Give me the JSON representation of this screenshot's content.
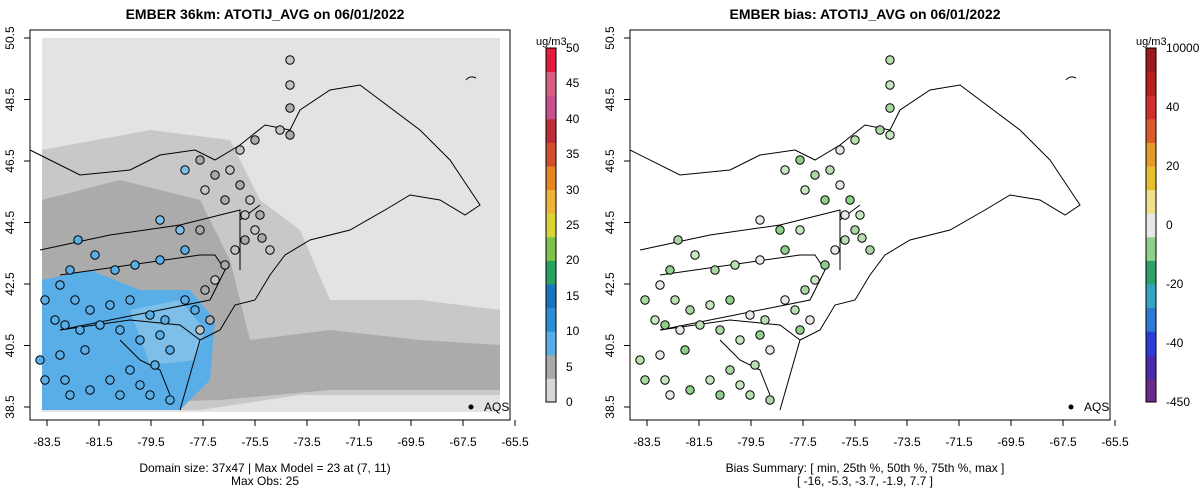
{
  "left_panel": {
    "title": "EMBER 36km: ATOTIJ_AVG on 06/01/2022",
    "footer_line1": "Domain size: 37x47 | Max Model = 23 at (7, 11)",
    "footer_line2": "Max Obs: 25",
    "legend_label": "AQS",
    "colorbar": {
      "unit": "ug/m3",
      "ticks": [
        "50",
        "45",
        "40",
        "35",
        "30",
        "25",
        "20",
        "15",
        "10",
        "5",
        "0"
      ],
      "colors": [
        "#d7d7d7",
        "#aaaaaa",
        "#5aaee8",
        "#2c8fd6",
        "#1a73bf",
        "#2aa061",
        "#7fc24a",
        "#d9d435",
        "#f0b23a",
        "#e58524",
        "#d0502a",
        "#bf2c39",
        "#c8508d",
        "#d65f82",
        "#e21b3c"
      ]
    }
  },
  "right_panel": {
    "title": "EMBER bias: ATOTIJ_AVG on 06/01/2022",
    "footer_line1": "Bias Summary: [ min, 25th %, 50th %, 75th %, max ]",
    "footer_line2": "[ -16,   -5.3,   -3.7,   -1.9,   7.7 ]",
    "legend_label": "AQS",
    "colorbar": {
      "unit": "ug/m3",
      "ticks": [
        "10000",
        "40",
        "20",
        "0",
        "-20",
        "-40",
        "-450"
      ],
      "colors": [
        "#6a2a8a",
        "#4a2bb0",
        "#2b3fd6",
        "#2a7ad6",
        "#33a5c2",
        "#2fa26a",
        "#8fcf8a",
        "#e8e8e8",
        "#f1e08a",
        "#e6c030",
        "#e49a2a",
        "#db5a2a",
        "#d12e2e",
        "#b82020",
        "#9a1c1c"
      ]
    }
  },
  "map_axes": {
    "x_ticks": [
      "-83.5",
      "-81.5",
      "-79.5",
      "-77.5",
      "-75.5",
      "-73.5",
      "-71.5",
      "-69.5",
      "-67.5",
      "-65.5"
    ],
    "y_ticks": [
      "50.5",
      "48.5",
      "46.5",
      "44.5",
      "42.5",
      "40.5",
      "38.5"
    ],
    "x_range": [
      -84.5,
      -65.0
    ],
    "y_range": [
      38.3,
      50.8
    ]
  },
  "colors": {
    "model_background": "#e3e3e3",
    "ocean_grey": "#bdbdbd",
    "pm_blue": "#5aaee8",
    "bias_green": "#a8d8a0",
    "obs_grey": "#c4c4c4"
  }
}
